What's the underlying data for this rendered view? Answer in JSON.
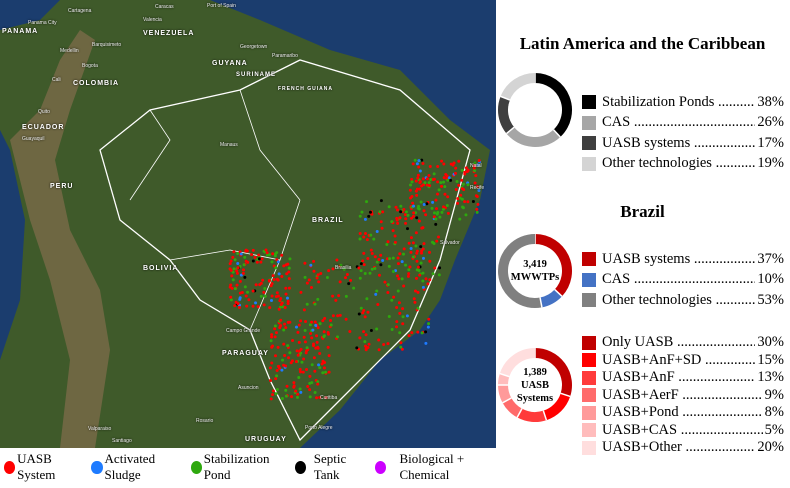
{
  "map": {
    "countries": [
      {
        "name": "PANAMA",
        "cls": "a"
      },
      {
        "name": "VENEZUELA",
        "cls": "b"
      },
      {
        "name": "COLOMBIA",
        "cls": "c"
      },
      {
        "name": "GUYANA",
        "cls": "d"
      },
      {
        "name": "SURINAME",
        "cls": "e"
      },
      {
        "name": "FRENCH GUIANA",
        "cls": "f"
      },
      {
        "name": "ECUADOR",
        "cls": "g"
      },
      {
        "name": "PERU",
        "cls": "h"
      },
      {
        "name": "BRAZIL",
        "cls": "i"
      },
      {
        "name": "BOLIVIA",
        "cls": "j"
      },
      {
        "name": "PARAGUAY",
        "cls": "k"
      },
      {
        "name": "URUGUAY",
        "cls": "l"
      }
    ],
    "cities": [
      "Panama City",
      "Cartagena",
      "Caracas",
      "Valencia",
      "Port of Spain",
      "Barquisimeto",
      "Medellin",
      "Bogota",
      "Cali",
      "Georgetown",
      "Paramaribo",
      "Quito",
      "Guayaquil",
      "Manaus",
      "Brasilia",
      "Campo Grande",
      "Salvador",
      "Recife",
      "Natal",
      "Asuncion",
      "Curitiba",
      "Porto Alegre",
      "Valparaiso",
      "Santiago",
      "Rosario"
    ]
  },
  "legend": [
    {
      "label": "UASB System",
      "color": "#ff0000"
    },
    {
      "label": "Activated Sludge",
      "color": "#1e7bff"
    },
    {
      "label": "Stabilization Pond",
      "color": "#2ea80e"
    },
    {
      "label": "Septic Tank",
      "color": "#000000"
    },
    {
      "label": "Biological + Chemical",
      "color": "#cc00ff"
    }
  ],
  "lac": {
    "title": "Latin America and the Caribbean",
    "items": [
      {
        "label": "Stabilization Ponds",
        "pct": "38%",
        "value": 38,
        "color": "#000000"
      },
      {
        "label": "CAS",
        "pct": "26%",
        "value": 26,
        "color": "#a6a6a6"
      },
      {
        "label": "UASB systems",
        "pct": "17%",
        "value": 17,
        "color": "#3f3f3f"
      },
      {
        "label": "Other technologies",
        "pct": "19%",
        "value": 19,
        "color": "#d4d4d4"
      }
    ]
  },
  "brazil": {
    "title": "Brazil",
    "center_count": "3,419",
    "center_label": "MWWTPs",
    "items": [
      {
        "label": "UASB systems",
        "pct": "37%",
        "value": 37,
        "color": "#c00000"
      },
      {
        "label": "Other technologies",
        "pct": "53%",
        "value": 53,
        "color": "#808080"
      },
      {
        "label": "CAS",
        "pct": "10%",
        "value": 10,
        "color": "#4472c4"
      }
    ],
    "order": [
      0,
      2,
      1
    ]
  },
  "uasb": {
    "center_count": "1,389",
    "center_label1": "UASB",
    "center_label2": "Systems",
    "items": [
      {
        "label": "Only UASB",
        "pct": "30%",
        "value": 30,
        "color": "#c00000"
      },
      {
        "label": "UASB+AnF+SD",
        "pct": "15%",
        "value": 15,
        "color": "#ff0000"
      },
      {
        "label": "UASB+AnF",
        "pct": "13%",
        "value": 13,
        "color": "#ff3b3b"
      },
      {
        "label": "UASB+AerF",
        "pct": "9%",
        "value": 9,
        "color": "#ff6b6b"
      },
      {
        "label": "UASB+Pond",
        "pct": "8%",
        "value": 8,
        "color": "#ff9a9a"
      },
      {
        "label": "UASB+CAS",
        "pct": "5%",
        "value": 5,
        "color": "#ffbcbc"
      },
      {
        "label": "UASB+Other",
        "pct": "20%",
        "value": 20,
        "color": "#ffdede"
      }
    ]
  }
}
